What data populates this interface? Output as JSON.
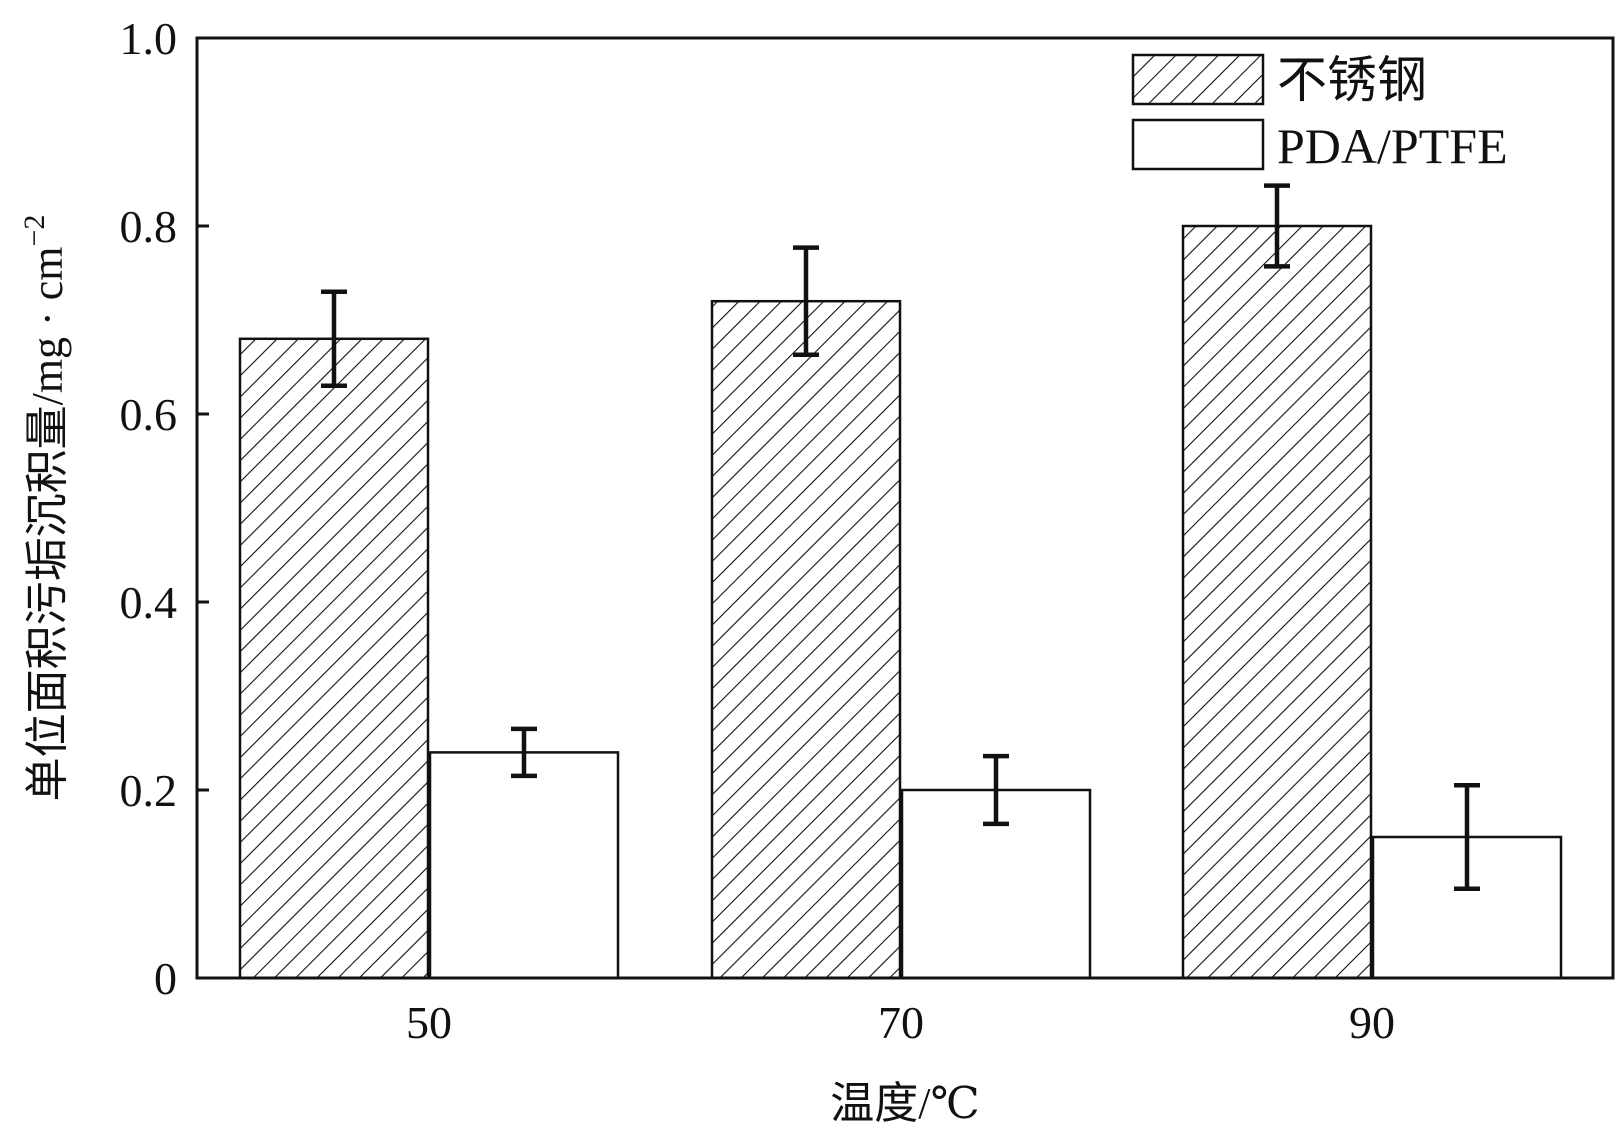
{
  "chart_data": {
    "type": "bar",
    "title": "",
    "xlabel": "温度/℃",
    "ylabel": "单位面积污垢沉积量/mg · cm",
    "ylabel_superscript": "−2",
    "categories": [
      "50",
      "70",
      "90"
    ],
    "ylim": [
      0,
      1.0
    ],
    "yticks": [
      "0",
      "0.2",
      "0.4",
      "0.6",
      "0.8",
      "1.0"
    ],
    "ytick_values": [
      0,
      0.2,
      0.4,
      0.6,
      0.8,
      1.0
    ],
    "grid": false,
    "legend_position": "top-right",
    "series": [
      {
        "name": "不锈钢",
        "pattern": "hatched",
        "values": [
          0.68,
          0.72,
          0.8
        ],
        "errors": [
          0.05,
          0.057,
          0.043
        ]
      },
      {
        "name": "PDA/PTFE",
        "pattern": "open",
        "values": [
          0.24,
          0.2,
          0.15
        ],
        "errors": [
          0.025,
          0.036,
          0.055
        ]
      }
    ],
    "colors": {
      "line": "#111111",
      "fill_open": "#ffffff",
      "fill_hatched_background": "#ffffff"
    }
  }
}
